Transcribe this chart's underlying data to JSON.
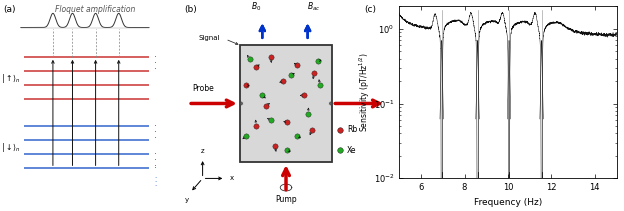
{
  "fig_width": 6.24,
  "fig_height": 2.11,
  "dpi": 100,
  "bg_color": "#ffffff",
  "panel_a": {
    "label": "(a)",
    "title": "Floquet amplification",
    "red_color": "#cc3333",
    "blue_color": "#3366cc",
    "line_color": "#444444"
  },
  "panel_b": {
    "label": "(b)",
    "signal_label": "Signal",
    "probe_label": "Probe",
    "pump_label": "Pump",
    "b0_label": "B_0",
    "bac_label": "B_{ac}",
    "rb_label": "Rb",
    "xe_label": "Xe",
    "box_facecolor": "#d8d8d8",
    "box_edgecolor": "#333333",
    "arrow_red": "#cc0000",
    "arrow_blue": "#0033cc"
  },
  "panel_c": {
    "label": "(c)",
    "xlabel": "Frequency (Hz)",
    "ylabel": "Sensitivity (pT/Hz$^{1/2}$)",
    "xlim": [
      5.0,
      15.0
    ],
    "ylim": [
      0.01,
      2.0
    ],
    "xticks": [
      6,
      8,
      10,
      12,
      14
    ],
    "notch_freqs": [
      6.95,
      8.6,
      10.05,
      11.55
    ],
    "noise_level": 1.0,
    "line_color": "#111111"
  }
}
